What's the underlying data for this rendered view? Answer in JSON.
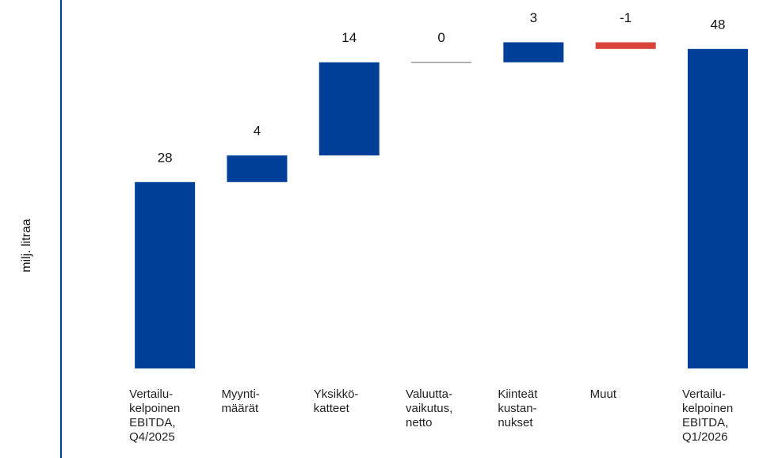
{
  "chart_data": {
    "type": "waterfall",
    "y_label": "milj. litraa",
    "categories": [
      "Vertailu-\nkelpoinen\nEBITDA,\nQ4/2025",
      "Myynti-\nmäärät",
      "Yksikkö-\nkatteet",
      "Valuutta-\nvaikutus,\nnetto",
      "Kiinteät\nkustan-\nnukset",
      "Muut",
      "Vertailu-\nkelpoinen\nEBITDA,\nQ1/2026"
    ],
    "values": [
      28,
      4,
      14,
      0,
      3,
      -1,
      48
    ],
    "measures": [
      "absolute",
      "relative",
      "relative",
      "relative",
      "relative",
      "relative",
      "total"
    ],
    "total_color": "#003f98",
    "increase_color": "#003f98",
    "decrease_color": "#d9443a",
    "ylim": [
      0,
      55
    ]
  }
}
